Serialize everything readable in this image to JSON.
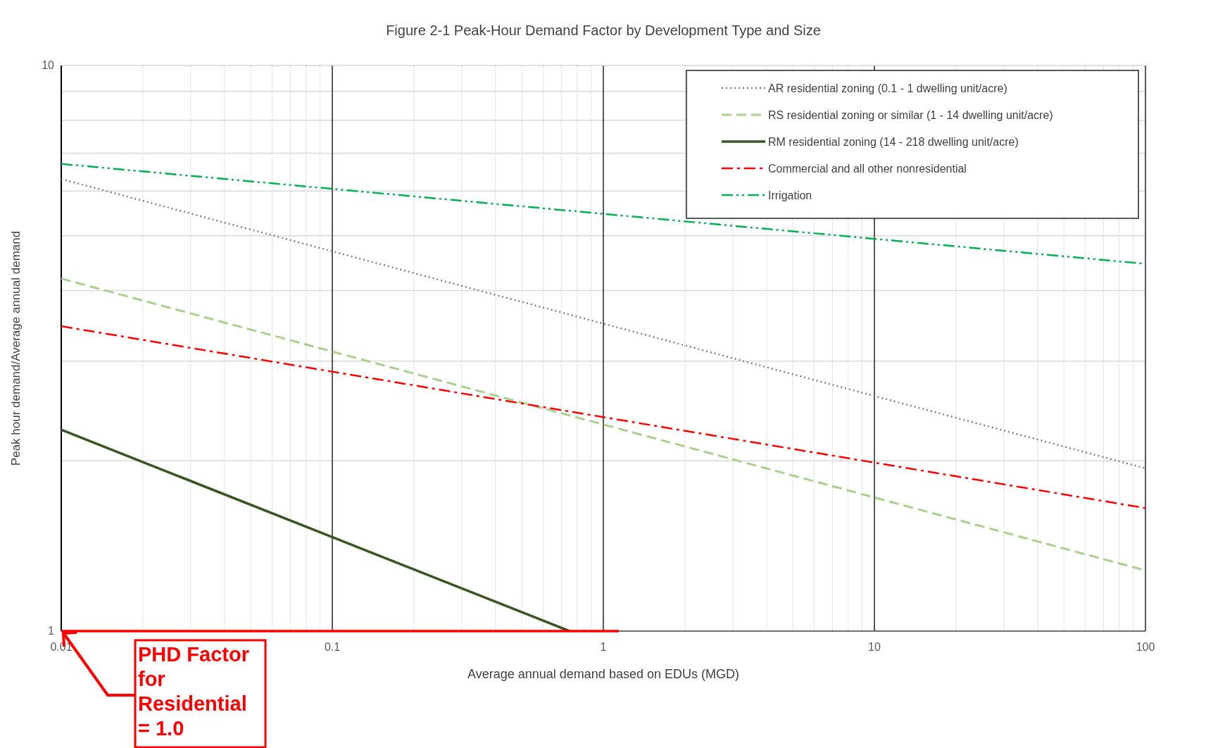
{
  "chart_data": {
    "type": "line",
    "title": "Figure 2-1 Peak-Hour Demand Factor by Development Type and Size",
    "xlabel": "Average annual demand based on EDUs (MGD)",
    "ylabel": "Peak hour demand/Average annual demand",
    "log": "xy",
    "xlim": [
      0.01,
      100
    ],
    "ylim": [
      1,
      10
    ],
    "xticks": [
      0.01,
      0.1,
      1,
      10,
      100
    ],
    "yticks": [
      1,
      10
    ],
    "grid": true,
    "legend": "top right",
    "series": [
      {
        "name": "AR residential zoning (0.1 - 1 dwelling unit/acre)",
        "color": "#7f7f7f",
        "line_style": "dotted",
        "x": [
          0.01,
          100
        ],
        "values": [
          6.3,
          1.94
        ]
      },
      {
        "name": "RS residential zoning or similar (1 - 14 dwelling unit/acre)",
        "color": "#a9d18e",
        "line_style": "dashed",
        "x": [
          0.01,
          100
        ],
        "values": [
          4.2,
          1.28
        ]
      },
      {
        "name": "RM residential zoning (14 - 218 dwelling unit/acre)",
        "color": "#375623",
        "line_style": "solid",
        "x": [
          0.01,
          0.75
        ],
        "values": [
          2.27,
          1
        ]
      },
      {
        "name": "Commercial and all other nonresidential",
        "color": "#ff0000",
        "line_style": "dashdot",
        "x": [
          0.01,
          100
        ],
        "values": [
          3.46,
          1.65
        ]
      },
      {
        "name": "Irrigation",
        "color": "#00b050",
        "line_style": "dashdotdot",
        "x": [
          0.01,
          100
        ],
        "values": [
          6.7,
          4.46
        ]
      },
      {
        "color": "#ff0000",
        "line_style": "solid",
        "x": [
          0.01,
          1.14
        ],
        "values": [
          1,
          1
        ]
      }
    ],
    "annotations": [
      {
        "text": "PHD Factor for Residential = 1.0",
        "x": 0.01,
        "y": 1
      }
    ]
  }
}
